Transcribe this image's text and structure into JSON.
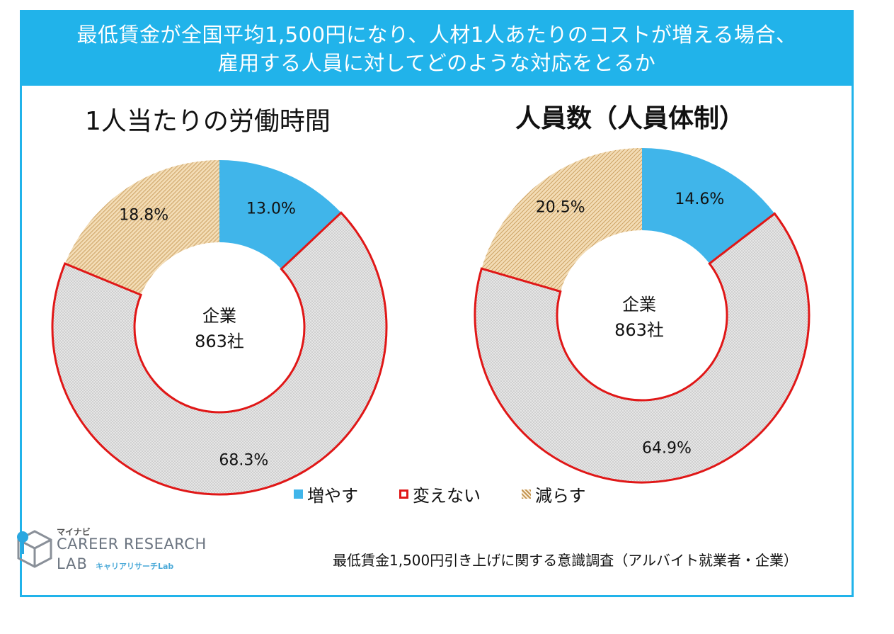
{
  "header": {
    "title_line1": "最低賃金が全国平均1,500円になり、人材1人あたりのコストが増える場合、",
    "title_line2": "雇用する人員に対してどのような対応をとるか"
  },
  "colors": {
    "frame": "#21b3ea",
    "increase": "#40b5ea",
    "no_change_border": "#e01717",
    "no_change_fill": "#e6e6e6",
    "decrease_fill": "#f3dcb5",
    "decrease_stripe": "#c39450"
  },
  "chart_data": [
    {
      "type": "donut",
      "title": "1人当たりの労働時間",
      "center_label": "企業",
      "center_value": "863社",
      "categories": [
        "増やす",
        "変えない",
        "減らす"
      ],
      "values": [
        13.0,
        68.3,
        18.8
      ],
      "labels": [
        "13.0%",
        "68.3%",
        "18.8%"
      ]
    },
    {
      "type": "donut",
      "title": "人員数（人員体制）",
      "center_label": "企業",
      "center_value": "863社",
      "categories": [
        "増やす",
        "変えない",
        "減らす"
      ],
      "values": [
        14.6,
        64.9,
        20.5
      ],
      "labels": [
        "14.6%",
        "64.9%",
        "20.5%"
      ]
    }
  ],
  "legend": {
    "items": [
      {
        "label": "増やす",
        "style": "filled-blue"
      },
      {
        "label": "変えない",
        "style": "outlined-red"
      },
      {
        "label": "減らす",
        "style": "hatched-tan"
      }
    ]
  },
  "logo": {
    "brand": "マイナビ",
    "line1": "CAREER RESEARCH",
    "line2": "LAB",
    "sub": "キャリアリサーチLab",
    "icon": "cube-logo-icon"
  },
  "footer": {
    "source": "最低賃金1,500円引き上げに関する意識調査（アルバイト就業者・企業）"
  }
}
